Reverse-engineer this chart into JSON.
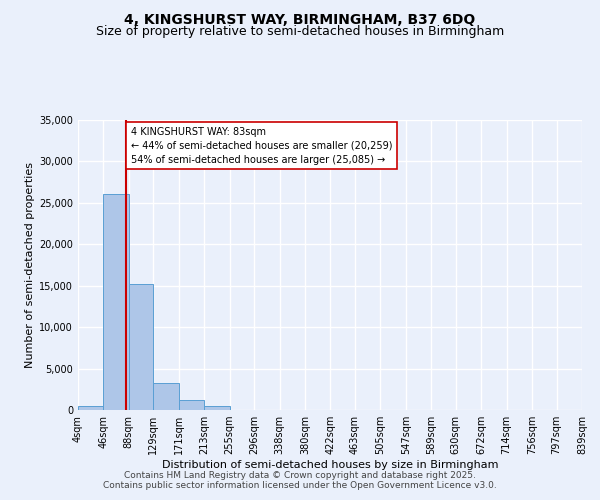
{
  "title": "4, KINGSHURST WAY, BIRMINGHAM, B37 6DQ",
  "subtitle": "Size of property relative to semi-detached houses in Birmingham",
  "xlabel": "Distribution of semi-detached houses by size in Birmingham",
  "ylabel": "Number of semi-detached properties",
  "bins": [
    4,
    46,
    88,
    129,
    171,
    213,
    255,
    296,
    338,
    380,
    422,
    463,
    505,
    547,
    589,
    630,
    672,
    714,
    756,
    797,
    839
  ],
  "counts": [
    430,
    26100,
    15200,
    3300,
    1150,
    500,
    0,
    0,
    0,
    0,
    0,
    0,
    0,
    0,
    0,
    0,
    0,
    0,
    0,
    0
  ],
  "bar_color": "#aec6e8",
  "bar_edge_color": "#5a9fd4",
  "property_size": 83,
  "property_label": "4 KINGSHURST WAY: 83sqm",
  "pct_smaller": 44,
  "count_smaller": 20259,
  "pct_larger": 54,
  "count_larger": 25085,
  "vline_color": "#cc0000",
  "annotation_box_color": "#cc0000",
  "annotation_text_color": "#000000",
  "ylim": [
    0,
    35000
  ],
  "yticks": [
    0,
    5000,
    10000,
    15000,
    20000,
    25000,
    30000,
    35000
  ],
  "bg_color": "#eaf0fb",
  "grid_color": "#ffffff",
  "footer_line1": "Contains HM Land Registry data © Crown copyright and database right 2025.",
  "footer_line2": "Contains public sector information licensed under the Open Government Licence v3.0.",
  "title_fontsize": 10,
  "subtitle_fontsize": 9,
  "axis_label_fontsize": 8,
  "tick_fontsize": 7,
  "footer_fontsize": 6.5
}
